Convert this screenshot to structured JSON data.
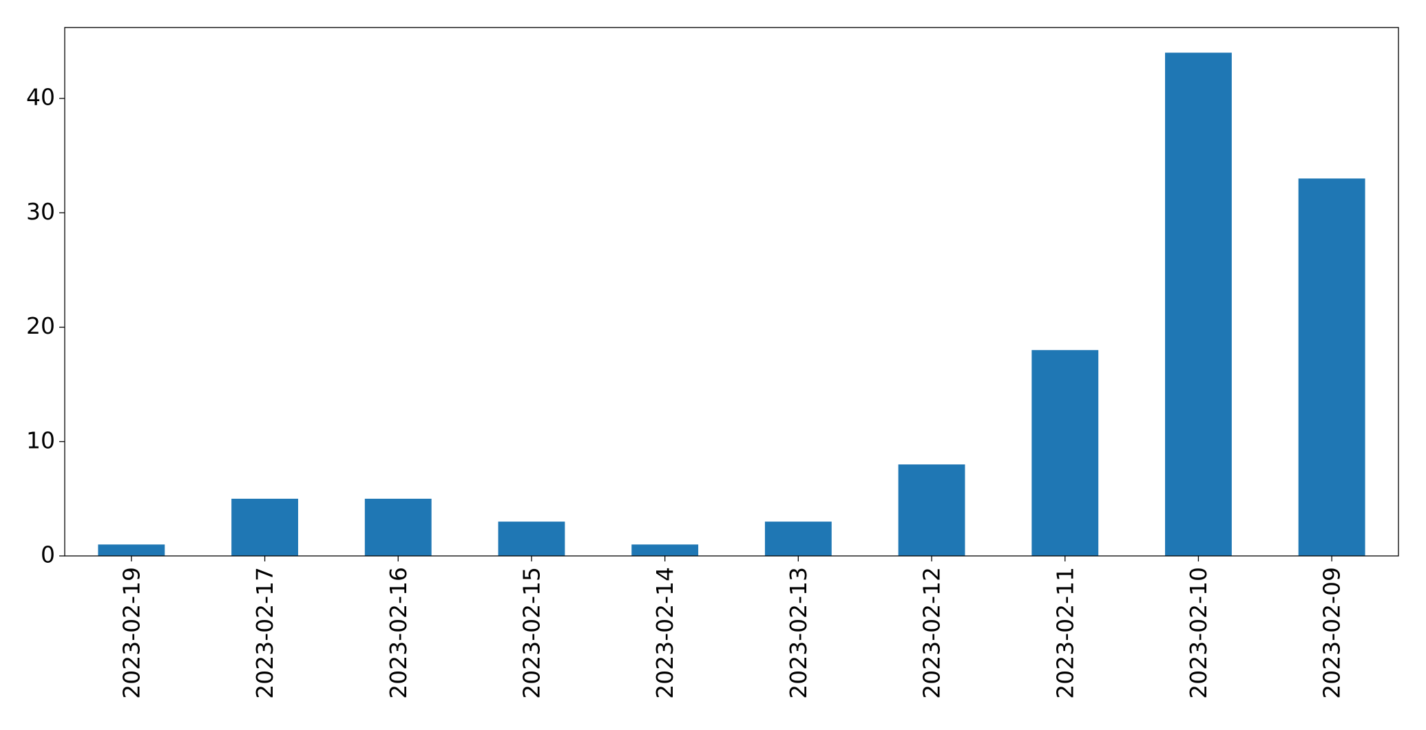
{
  "chart_data": {
    "type": "bar",
    "categories": [
      "2023-02-19",
      "2023-02-17",
      "2023-02-16",
      "2023-02-15",
      "2023-02-14",
      "2023-02-13",
      "2023-02-12",
      "2023-02-11",
      "2023-02-10",
      "2023-02-09"
    ],
    "values": [
      1,
      5,
      5,
      3,
      1,
      3,
      8,
      18,
      44,
      33
    ],
    "color": "#1f77b4",
    "ylim": [
      0,
      46.2
    ],
    "yticks": [
      0,
      10,
      20,
      30,
      40
    ],
    "grid": false
  }
}
